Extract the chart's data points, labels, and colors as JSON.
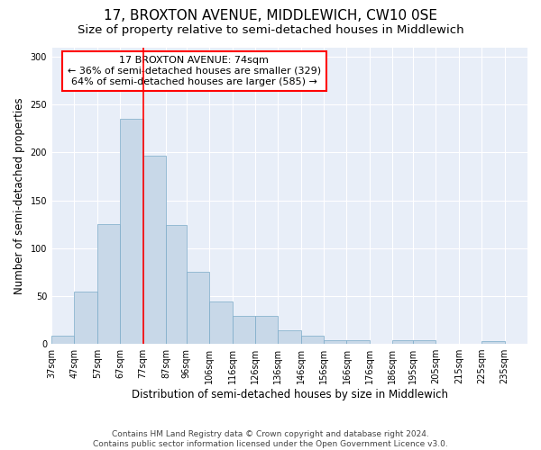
{
  "title": "17, BROXTON AVENUE, MIDDLEWICH, CW10 0SE",
  "subtitle": "Size of property relative to semi-detached houses in Middlewich",
  "xlabel": "Distribution of semi-detached houses by size in Middlewich",
  "ylabel": "Number of semi-detached properties",
  "bins": [
    37,
    47,
    57,
    67,
    77,
    87,
    96,
    106,
    116,
    126,
    136,
    146,
    156,
    166,
    176,
    186,
    195,
    205,
    215,
    225,
    235
  ],
  "bin_labels": [
    "37sqm",
    "47sqm",
    "57sqm",
    "67sqm",
    "77sqm",
    "87sqm",
    "96sqm",
    "106sqm",
    "116sqm",
    "126sqm",
    "136sqm",
    "146sqm",
    "156sqm",
    "166sqm",
    "176sqm",
    "186sqm",
    "195sqm",
    "205sqm",
    "215sqm",
    "225sqm",
    "235sqm"
  ],
  "counts": [
    9,
    55,
    125,
    235,
    197,
    124,
    75,
    44,
    29,
    29,
    14,
    9,
    4,
    4,
    0,
    4,
    4,
    0,
    0,
    3,
    0
  ],
  "bar_color": "#c8d8e8",
  "bar_edge_color": "#7aaac8",
  "vline_color": "red",
  "vline_x": 77,
  "annotation_line1": "17 BROXTON AVENUE: 74sqm",
  "annotation_line2": "← 36% of semi-detached houses are smaller (329)",
  "annotation_line3": "64% of semi-detached houses are larger (585) →",
  "annotation_box_color": "white",
  "annotation_box_edge": "red",
  "footnote": "Contains HM Land Registry data © Crown copyright and database right 2024.\nContains public sector information licensed under the Open Government Licence v3.0.",
  "ylim": [
    0,
    310
  ],
  "background_color": "#e8eef8",
  "title_fontsize": 11,
  "subtitle_fontsize": 9.5,
  "ylabel_fontsize": 8.5,
  "xlabel_fontsize": 8.5,
  "tick_fontsize": 7,
  "footnote_fontsize": 6.5,
  "annotation_fontsize": 8
}
